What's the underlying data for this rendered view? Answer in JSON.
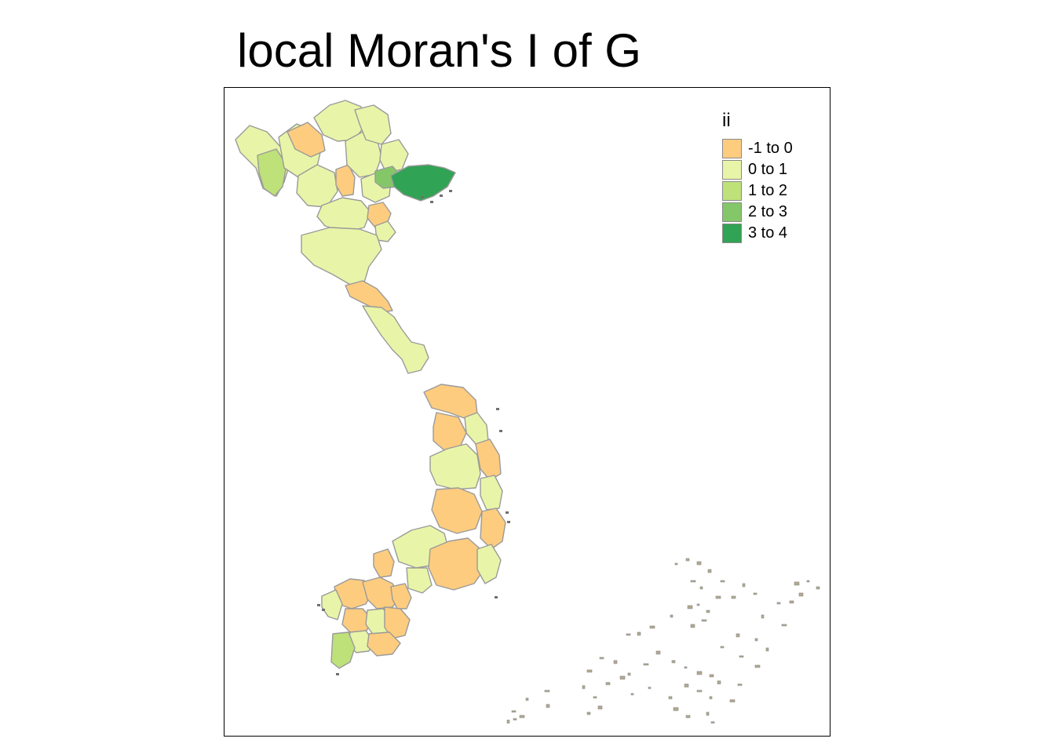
{
  "title": "local Moran's I of G",
  "legend": {
    "title": "ii",
    "items": [
      {
        "label": "-1 to 0",
        "color": "#FDCC7F"
      },
      {
        "label": "0 to 1",
        "color": "#E8F5A8"
      },
      {
        "label": "1 to 2",
        "color": "#BEE17A"
      },
      {
        "label": "2 to 3",
        "color": "#84C768"
      },
      {
        "label": "3 to 4",
        "color": "#31A354"
      }
    ]
  },
  "border_color": "#9A9A9A",
  "island_color": "#B3A98E"
}
